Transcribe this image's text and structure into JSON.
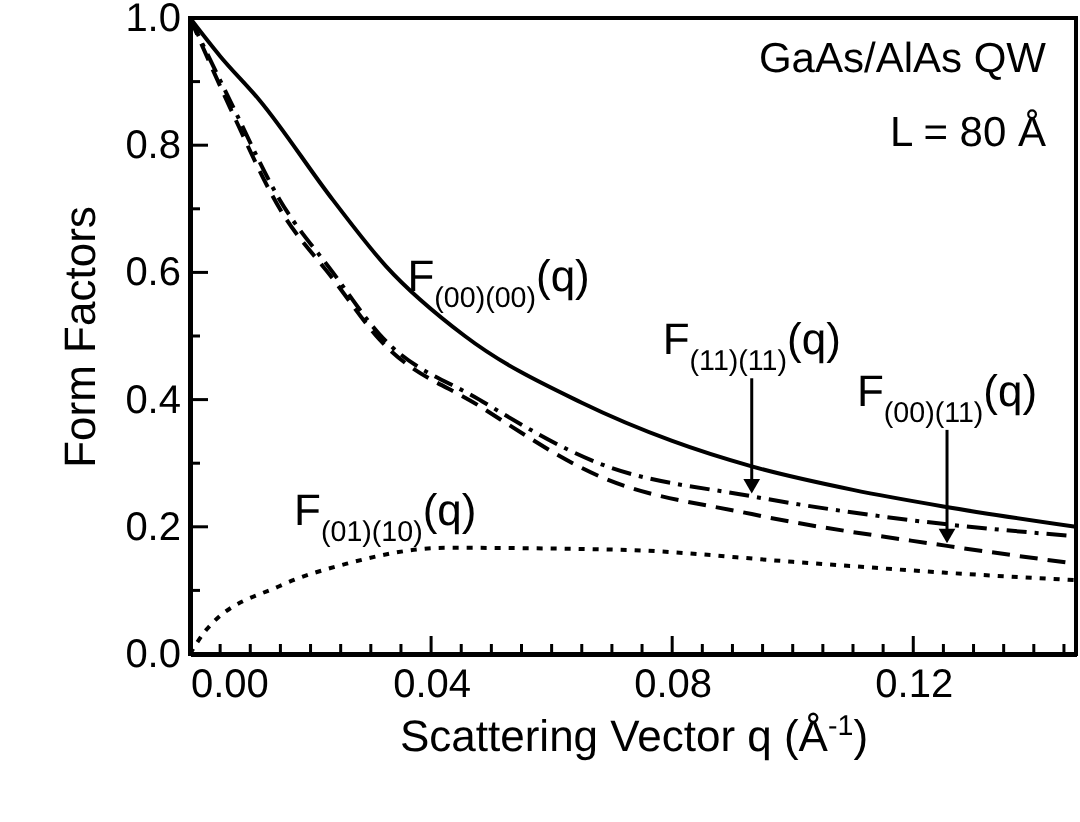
{
  "chart_data": {
    "type": "line",
    "xlabel": "Scattering Vector q (Å$^{-1}$)",
    "ylabel": "Form Factors",
    "xlim": [
      0,
      0.147
    ],
    "ylim": [
      0,
      1.0
    ],
    "xticks": [
      {
        "value": 0,
        "label": "0.00"
      },
      {
        "value": 0.005,
        "label": null
      },
      {
        "value": 0.01,
        "label": null
      },
      {
        "value": 0.015,
        "label": null
      },
      {
        "value": 0.02,
        "label": null
      },
      {
        "value": 0.025,
        "label": null
      },
      {
        "value": 0.03,
        "label": null
      },
      {
        "value": 0.035,
        "label": null
      },
      {
        "value": 0.04,
        "label": "0.04"
      },
      {
        "value": 0.045,
        "label": null
      },
      {
        "value": 0.05,
        "label": null
      },
      {
        "value": 0.055,
        "label": null
      },
      {
        "value": 0.06,
        "label": null
      },
      {
        "value": 0.065,
        "label": null
      },
      {
        "value": 0.07,
        "label": null
      },
      {
        "value": 0.075,
        "label": null
      },
      {
        "value": 0.08,
        "label": "0.08"
      },
      {
        "value": 0.085,
        "label": null
      },
      {
        "value": 0.09,
        "label": null
      },
      {
        "value": 0.095,
        "label": null
      },
      {
        "value": 0.1,
        "label": null
      },
      {
        "value": 0.105,
        "label": null
      },
      {
        "value": 0.11,
        "label": null
      },
      {
        "value": 0.115,
        "label": null
      },
      {
        "value": 0.12,
        "label": "0.12"
      },
      {
        "value": 0.125,
        "label": null
      },
      {
        "value": 0.13,
        "label": null
      },
      {
        "value": 0.135,
        "label": null
      },
      {
        "value": 0.14,
        "label": null
      },
      {
        "value": 0.145,
        "label": null
      }
    ],
    "yticks": [
      {
        "value": 0,
        "label": "0.0"
      },
      {
        "value": 0.1,
        "label": null
      },
      {
        "value": 0.2,
        "label": "0.2"
      },
      {
        "value": 0.3,
        "label": null
      },
      {
        "value": 0.4,
        "label": "0.4"
      },
      {
        "value": 0.5,
        "label": null
      },
      {
        "value": 0.6,
        "label": "0.6"
      },
      {
        "value": 0.7,
        "label": null
      },
      {
        "value": 0.8,
        "label": "0.8"
      },
      {
        "value": 0.9,
        "label": null
      },
      {
        "value": 1.0,
        "label": "1.0"
      }
    ],
    "grid": false,
    "marker": "none",
    "series": [
      {
        "color": "#000000",
        "line_style": "solid",
        "x": [
          0,
          0.005,
          0.0116,
          0.0237,
          0.0325,
          0.0456,
          0.065,
          0.08,
          0.0932,
          0.11,
          0.125,
          0.147
        ],
        "values": [
          1.0,
          0.94,
          0.87,
          0.714,
          0.61,
          0.5,
          0.395,
          0.335,
          0.295,
          0.258,
          0.232,
          0.2
        ]
      },
      {
        "color": "#000000",
        "line_style": "dashdot",
        "x": [
          0,
          0.0066,
          0.0149,
          0.0237,
          0.0314,
          0.048,
          0.0678,
          0.0932,
          0.12,
          0.147
        ],
        "values": [
          1.0,
          0.871,
          0.714,
          0.6,
          0.503,
          0.4,
          0.3,
          0.248,
          0.21,
          0.185
        ]
      },
      {
        "color": "#000000",
        "line_style": "dashed",
        "x": [
          0,
          0.0066,
          0.0149,
          0.0237,
          0.0314,
          0.048,
          0.0678,
          0.0932,
          0.1256,
          0.147
        ],
        "values": [
          1.0,
          0.86,
          0.7,
          0.59,
          0.495,
          0.39,
          0.28,
          0.22,
          0.17,
          0.142
        ]
      },
      {
        "color": "#000000",
        "line_style": "dotted",
        "x": [
          0,
          0.0027,
          0.0149,
          0.026,
          0.0424,
          0.0711,
          0.1,
          0.125,
          0.147
        ],
        "values": [
          0.0,
          0.038,
          0.107,
          0.142,
          0.167,
          0.164,
          0.145,
          0.128,
          0.116
        ]
      }
    ],
    "annotations": [
      {
        "text": "F$_{(00)(00)}$(q)",
        "x": 0.0512,
        "y": 0.47
      },
      {
        "text": "F$_{(11)(11)}$(q)",
        "x": 0.0932,
        "y": 0.248
      },
      {
        "text": "F$_{(00)(11)}$(q)",
        "x": 0.1256,
        "y": 0.17
      },
      {
        "text": "F$_{(01)(10)}$(q)",
        "x": 0.0324,
        "y": 0.152
      },
      "GaAs/AlAs QW",
      "L = 80 Å"
    ]
  }
}
